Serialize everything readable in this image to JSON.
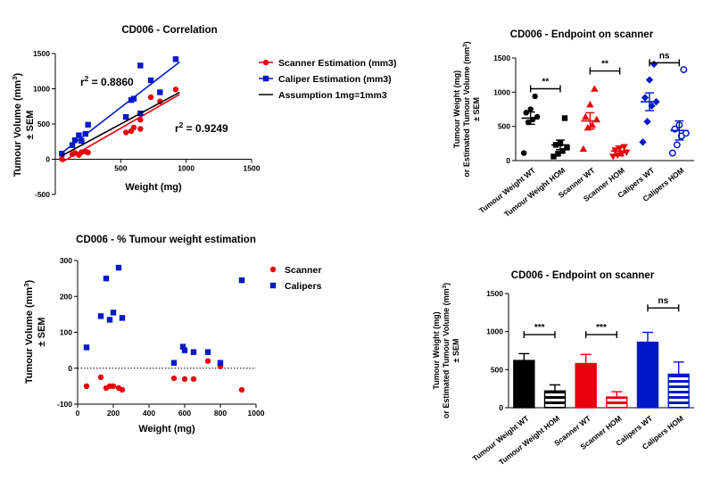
{
  "colors": {
    "scanner": "#e8000b",
    "calipers": "#0019c8",
    "assumption": "#000000",
    "black": "#000000"
  },
  "chart_data": [
    {
      "id": "correlation",
      "type": "scatter",
      "title": "CD006  - Correlation",
      "xlabel": "Weight (mg)",
      "ylabel_main": "Tumour Volume (mm",
      "ylabel_sup": "3",
      "ylabel_close": ")",
      "ylabel2": "± SEM",
      "xlim": [
        0,
        1500
      ],
      "ylim": [
        -500,
        1500
      ],
      "xticks": [
        "500",
        "1000",
        "1500"
      ],
      "xtick_values": [
        500,
        1000,
        1500
      ],
      "yticks": [
        "-500",
        "0",
        "500",
        "1000",
        "1500"
      ],
      "ytick_values": [
        -500,
        0,
        500,
        1000,
        1500
      ],
      "series": [
        {
          "name": "Scanner Estimation (mm3)",
          "color": "#e8000b",
          "marker": "circle",
          "x": [
            50,
            130,
            150,
            180,
            200,
            230,
            250,
            540,
            580,
            600,
            650,
            650,
            730,
            800,
            920
          ],
          "y": [
            5,
            70,
            90,
            60,
            100,
            110,
            95,
            380,
            400,
            450,
            430,
            560,
            880,
            820,
            990
          ],
          "fit": [
            [
              50,
              -40
            ],
            [
              950,
              920
            ]
          ],
          "r2_label": "r",
          "r2_sup": "2",
          "r2_value": " = 0.9249"
        },
        {
          "name": "Caliper Estimation (mm3)",
          "color": "#0019c8",
          "marker": "square",
          "x": [
            50,
            130,
            150,
            180,
            200,
            230,
            250,
            540,
            580,
            600,
            650,
            650,
            730,
            800,
            920
          ],
          "y": [
            80,
            200,
            270,
            340,
            260,
            360,
            490,
            600,
            840,
            860,
            650,
            1330,
            1120,
            950,
            1420
          ],
          "fit": [
            [
              50,
              90
            ],
            [
              950,
              1380
            ]
          ],
          "r2_label": "r",
          "r2_sup": "2",
          "r2_value": " = 0.8860"
        },
        {
          "name": "Assumption 1mg=1mm3",
          "color": "#000000",
          "marker": "line",
          "fit": [
            [
              50,
              50
            ],
            [
              950,
              950
            ]
          ]
        }
      ]
    },
    {
      "id": "percent",
      "type": "scatter",
      "title": "CD006 - % Tumour weight estimation",
      "xlabel": "Weight (mg)",
      "ylabel_main": "Tumour Volume (mm",
      "ylabel_sup": "3",
      "ylabel_close": ")",
      "ylabel2": "± SEM",
      "xlim": [
        0,
        1000
      ],
      "ylim": [
        -100,
        300
      ],
      "xticks": [
        "0",
        "200",
        "400",
        "600",
        "800",
        "1000"
      ],
      "xtick_values": [
        0,
        200,
        400,
        600,
        800,
        1000
      ],
      "yticks": [
        "-100",
        "0",
        "100",
        "200",
        "300"
      ],
      "ytick_values": [
        -100,
        0,
        100,
        200,
        300
      ],
      "series": [
        {
          "name": "Scanner",
          "color": "#e8000b",
          "marker": "circle",
          "x": [
            50,
            130,
            160,
            180,
            200,
            230,
            250,
            540,
            600,
            650,
            730,
            800,
            920
          ],
          "y": [
            -50,
            -25,
            -55,
            -50,
            -50,
            -55,
            -60,
            -28,
            -30,
            -30,
            20,
            5,
            -60
          ]
        },
        {
          "name": "Calipers",
          "color": "#0019c8",
          "marker": "square",
          "x": [
            50,
            130,
            160,
            180,
            200,
            230,
            250,
            540,
            590,
            600,
            650,
            730,
            800,
            920
          ],
          "y": [
            58,
            145,
            250,
            135,
            155,
            280,
            140,
            15,
            60,
            50,
            45,
            45,
            15,
            245
          ]
        }
      ]
    },
    {
      "id": "endpoint-scatter",
      "type": "scatter",
      "title": "CD006 - Endpoint on scanner",
      "ylabel_a": "Tumour Weight (mg)",
      "ylabel_b_main": "or Estimated Tumour Volume (mm",
      "ylabel_b_sup": "3",
      "ylabel_b_close": ")",
      "ylabel_c": "± SEM",
      "ylim": [
        0,
        1500
      ],
      "yticks": [
        "0",
        "500",
        "1000",
        "1500"
      ],
      "ytick_values": [
        0,
        500,
        1000,
        1500
      ],
      "categories": [
        "Tumour Weight WT",
        "Tumour Weight HOM",
        "Scanner WT",
        "Scanner HOM",
        "Calipers WT",
        "Calipers HOM"
      ],
      "colors": [
        "#000000",
        "#000000",
        "#e8000b",
        "#e8000b",
        "#0019c8",
        "#0019c8"
      ],
      "markers": [
        "circle",
        "square-filled",
        "triangle",
        "triangle-down",
        "diamond",
        "circle-open"
      ],
      "means": [
        620,
        230,
        580,
        140,
        860,
        440
      ],
      "sems": [
        90,
        70,
        120,
        70,
        130,
        140
      ],
      "points": [
        [
          110,
          560,
          600,
          640,
          700,
          750,
          940
        ],
        [
          60,
          100,
          140,
          190,
          230,
          250,
          620
        ],
        [
          170,
          480,
          520,
          600,
          640,
          820,
          1050
        ],
        [
          60,
          80,
          100,
          120,
          150,
          180,
          200
        ],
        [
          270,
          570,
          800,
          860,
          920,
          1180,
          1410
        ],
        [
          110,
          230,
          360,
          400,
          460,
          520,
          1330
        ]
      ],
      "significance": [
        {
          "label": "**",
          "from": 0,
          "to": 1,
          "y": 1050
        },
        {
          "label": "**",
          "from": 2,
          "to": 3,
          "y": 1310
        },
        {
          "label": "ns",
          "from": 4,
          "to": 5,
          "y": 1430
        }
      ]
    },
    {
      "id": "endpoint-bar",
      "type": "bar",
      "title": "CD006 - Endpoint on scanner",
      "ylabel_a": "Tumour Weight (mg)",
      "ylabel_b_main": "or Estimated Tumour Volume (mm",
      "ylabel_b_sup": "3",
      "ylabel_b_close": ")",
      "ylabel_c": "± SEM",
      "ylim": [
        0,
        1500
      ],
      "yticks": [
        "0",
        "500",
        "1000",
        "1500"
      ],
      "ytick_values": [
        0,
        500,
        1000,
        1500
      ],
      "categories": [
        "Tumour Weight WT",
        "Tumour Weight HOM",
        "Scanner WT",
        "Scanner HOM",
        "Calipers WT",
        "Calipers HOM"
      ],
      "colors": [
        "#000000",
        "#000000",
        "#e8000b",
        "#e8000b",
        "#0019c8",
        "#0019c8"
      ],
      "fills": [
        "solid",
        "stripes",
        "solid",
        "stripes",
        "solid",
        "stripes"
      ],
      "values": [
        620,
        220,
        580,
        140,
        860,
        440
      ],
      "sems": [
        90,
        80,
        120,
        70,
        130,
        160
      ],
      "significance": [
        {
          "label": "***",
          "from": 0,
          "to": 1,
          "y": 960
        },
        {
          "label": "***",
          "from": 2,
          "to": 3,
          "y": 960
        },
        {
          "label": "ns",
          "from": 4,
          "to": 5,
          "y": 1310
        }
      ]
    }
  ]
}
